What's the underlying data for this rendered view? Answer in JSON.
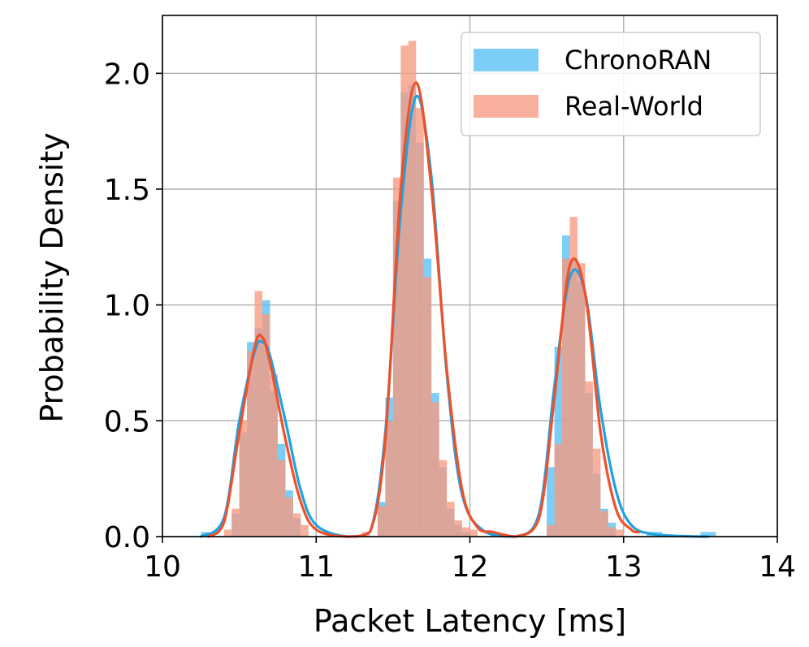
{
  "chart_data": {
    "type": "bar",
    "xlabel": "Packet Latency [ms]",
    "ylabel": "Probability Density",
    "xlim": [
      10,
      14
    ],
    "ylim": [
      0,
      2.25
    ],
    "xticks": [
      "10",
      "11",
      "12",
      "13",
      "14"
    ],
    "yticks": [
      "0.0",
      "0.5",
      "1.0",
      "1.5",
      "2.0"
    ],
    "grid": true,
    "legend_position": "top-right",
    "colors": {
      "ChronoRAN_bar": "#5bc0f5",
      "ChronoRAN_line": "#1ea2e0",
      "Real-World_bar": "#f79a80",
      "Real-World_line": "#f0502a"
    },
    "series": [
      {
        "name": "ChronoRAN",
        "kind": "histogram",
        "bin_width": 0.05,
        "bin_starts": [
          10.25,
          10.45,
          10.5,
          10.55,
          10.6,
          10.65,
          10.7,
          10.75,
          10.8,
          10.85,
          11.4,
          11.45,
          11.5,
          11.55,
          11.6,
          11.65,
          11.7,
          11.75,
          11.8,
          11.85,
          11.9,
          11.95,
          12.5,
          12.55,
          12.6,
          12.65,
          12.7,
          12.75,
          12.8,
          12.85,
          12.9,
          13.15,
          13.2,
          13.5,
          13.55
        ],
        "values": [
          0.02,
          0.1,
          0.45,
          0.84,
          0.9,
          1.02,
          0.63,
          0.4,
          0.2,
          0.08,
          0.15,
          0.6,
          1.45,
          1.92,
          1.95,
          1.7,
          1.2,
          0.62,
          0.3,
          0.12,
          0.05,
          0.02,
          0.3,
          0.82,
          1.3,
          1.2,
          1.1,
          0.62,
          0.27,
          0.12,
          0.06,
          0.02,
          0.02,
          0.02,
          0.02
        ],
        "kde": {
          "x": [
            10.25,
            10.4,
            10.5,
            10.6,
            10.65,
            10.7,
            10.8,
            10.9,
            11.0,
            11.2,
            11.35,
            11.45,
            11.55,
            11.65,
            11.75,
            11.85,
            11.95,
            12.1,
            12.3,
            12.45,
            12.55,
            12.65,
            12.75,
            12.85,
            12.95,
            13.05,
            13.2,
            13.5,
            13.55
          ],
          "y": [
            0.0,
            0.08,
            0.5,
            0.8,
            0.84,
            0.78,
            0.5,
            0.2,
            0.05,
            0.0,
            0.02,
            0.45,
            1.4,
            1.9,
            1.55,
            0.7,
            0.18,
            0.02,
            0.0,
            0.1,
            0.65,
            1.12,
            1.05,
            0.55,
            0.2,
            0.05,
            0.01,
            0.0,
            0.0
          ]
        }
      },
      {
        "name": "Real-World",
        "kind": "histogram",
        "bin_width": 0.05,
        "bin_starts": [
          10.4,
          10.45,
          10.5,
          10.55,
          10.6,
          10.65,
          10.7,
          10.75,
          10.8,
          10.85,
          10.9,
          11.3,
          11.4,
          11.45,
          11.5,
          11.55,
          11.6,
          11.65,
          11.7,
          11.75,
          11.8,
          11.85,
          11.9,
          11.95,
          12.0,
          12.5,
          12.55,
          12.6,
          12.65,
          12.7,
          12.75,
          12.8,
          12.85,
          12.9,
          12.95
        ],
        "values": [
          0.03,
          0.12,
          0.5,
          0.8,
          1.06,
          0.96,
          0.7,
          0.33,
          0.17,
          0.1,
          0.05,
          0.02,
          0.13,
          0.5,
          1.55,
          2.12,
          2.14,
          1.85,
          1.12,
          0.58,
          0.33,
          0.15,
          0.07,
          0.04,
          0.03,
          0.05,
          0.4,
          1.2,
          1.38,
          1.18,
          0.67,
          0.38,
          0.11,
          0.04,
          0.03
        ],
        "kde": {
          "x": [
            10.3,
            10.4,
            10.5,
            10.6,
            10.65,
            10.7,
            10.8,
            10.9,
            11.0,
            11.2,
            11.35,
            11.45,
            11.55,
            11.65,
            11.75,
            11.85,
            11.95,
            12.05,
            12.15,
            12.3,
            12.45,
            12.55,
            12.65,
            12.75,
            12.85,
            12.95,
            13.05,
            13.1
          ],
          "y": [
            0.0,
            0.06,
            0.45,
            0.82,
            0.86,
            0.75,
            0.42,
            0.15,
            0.03,
            0.0,
            0.02,
            0.42,
            1.5,
            1.96,
            1.5,
            0.72,
            0.2,
            0.04,
            0.02,
            0.0,
            0.08,
            0.6,
            1.17,
            1.05,
            0.45,
            0.12,
            0.03,
            0.02
          ]
        }
      }
    ]
  }
}
